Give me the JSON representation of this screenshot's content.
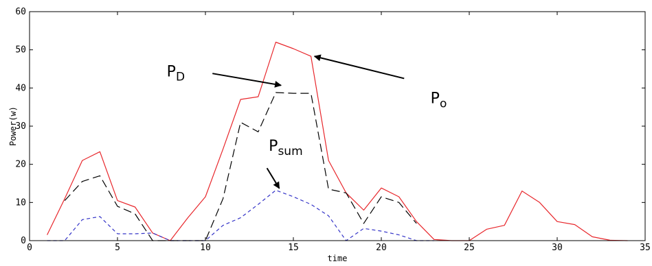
{
  "chart_data": {
    "type": "line",
    "title": "",
    "xlabel": "time",
    "ylabel": "Power(w)",
    "xlim": [
      0,
      35
    ],
    "ylim": [
      0,
      60
    ],
    "x_ticks": [
      0,
      5,
      10,
      15,
      20,
      25,
      30,
      35
    ],
    "y_ticks": [
      0,
      10,
      20,
      30,
      40,
      50,
      60
    ],
    "grid": false,
    "legend": "none",
    "series": [
      {
        "key": "po",
        "color": "#e8262b",
        "dash": "solid",
        "x": [
          1,
          2,
          3,
          4,
          5,
          6,
          7,
          8,
          9,
          10,
          11,
          12,
          13,
          14,
          15,
          16,
          17,
          18,
          19,
          20,
          21,
          22,
          23,
          24,
          25,
          26,
          27,
          28,
          29,
          30,
          31,
          32,
          33,
          34
        ],
        "y": [
          1.5,
          11,
          21,
          23.3,
          10.5,
          8.8,
          2,
          0,
          6,
          11.5,
          24,
          37,
          37.7,
          52,
          50.3,
          48.3,
          21,
          12.5,
          8,
          13.8,
          11.5,
          5,
          0.3,
          0,
          0,
          3,
          4,
          13,
          10,
          5,
          4.2,
          1,
          0.1,
          0
        ]
      },
      {
        "key": "pd",
        "color": "#000000",
        "dash": "long-dash",
        "x": [
          2,
          3,
          4,
          5,
          6,
          7,
          8,
          9,
          10,
          11,
          12,
          13,
          14,
          15,
          16,
          17,
          18,
          19,
          20,
          21,
          22
        ],
        "y": [
          10.5,
          15.5,
          17,
          9,
          7,
          0,
          0,
          0,
          0,
          11,
          31,
          28.5,
          38.8,
          38.6,
          38.6,
          13.5,
          12.5,
          4.5,
          11.5,
          10,
          4.5
        ]
      },
      {
        "key": "psum",
        "color": "#3434c8",
        "dash": "short-dash",
        "x": [
          1,
          2,
          3,
          4,
          5,
          6,
          7,
          8,
          9,
          10,
          11,
          12,
          13,
          14,
          15,
          16,
          17,
          18,
          19,
          20,
          21,
          22,
          23
        ],
        "y": [
          0,
          0,
          5.5,
          6.3,
          1.8,
          1.8,
          2,
          0,
          0,
          0,
          4,
          6,
          9.5,
          13.2,
          11.5,
          9.5,
          6.5,
          0,
          3.2,
          2.5,
          1.5,
          0,
          0
        ]
      }
    ],
    "annotations": [
      {
        "key": "pd",
        "main": "P",
        "sub": "D",
        "label_at": [
          7.8,
          43
        ],
        "arrow_from": [
          10.4,
          43.8
        ],
        "arrow_to": [
          14.3,
          40.7
        ]
      },
      {
        "key": "po",
        "main": "P",
        "sub": "o",
        "label_at": [
          22.8,
          36
        ],
        "arrow_from": [
          21.3,
          42.5
        ],
        "arrow_to": [
          16.2,
          48.3
        ]
      },
      {
        "key": "psum",
        "main": "P",
        "sub": "sum",
        "label_at": [
          13.6,
          23.5
        ],
        "arrow_from": [
          13.5,
          19
        ],
        "arrow_to": [
          14.2,
          13.7
        ]
      }
    ]
  }
}
